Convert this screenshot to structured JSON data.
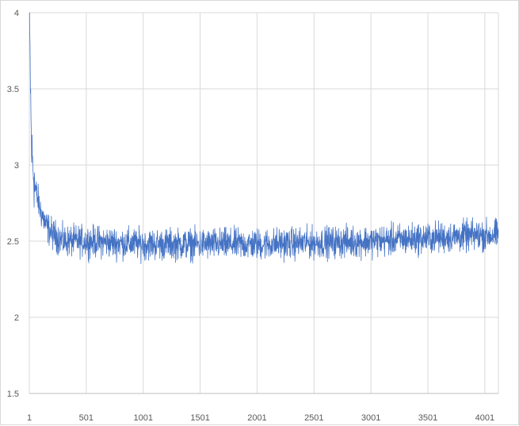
{
  "chart_data": {
    "type": "line",
    "title": "",
    "xlabel": "",
    "ylabel": "",
    "xlim": [
      1,
      4120
    ],
    "ylim": [
      1.5,
      4
    ],
    "grid": true,
    "legend": "none",
    "x_tick_labels": [
      "1",
      "501",
      "1001",
      "1501",
      "2001",
      "2501",
      "3001",
      "3501",
      "4001"
    ],
    "y_tick_labels": [
      "1.5",
      "2",
      "2.5",
      "3",
      "3.5",
      "4"
    ],
    "series": [
      {
        "color": "#4472c4",
        "n_points": 4120,
        "approx_trend": {
          "x": [
            1,
            20,
            50,
            100,
            150,
            200,
            300,
            500,
            1000,
            1500,
            2000,
            2500,
            3000,
            3500,
            4000,
            4120
          ],
          "y": [
            4.0,
            3.1,
            2.85,
            2.7,
            2.6,
            2.55,
            2.5,
            2.5,
            2.48,
            2.48,
            2.48,
            2.49,
            2.5,
            2.52,
            2.54,
            2.54
          ]
        },
        "noise_amplitude": 0.05
      }
    ],
    "colors": {
      "line": "#4472c4",
      "grid": "#d9d9d9",
      "axis": "#bfbfbf",
      "text": "#595959"
    }
  }
}
